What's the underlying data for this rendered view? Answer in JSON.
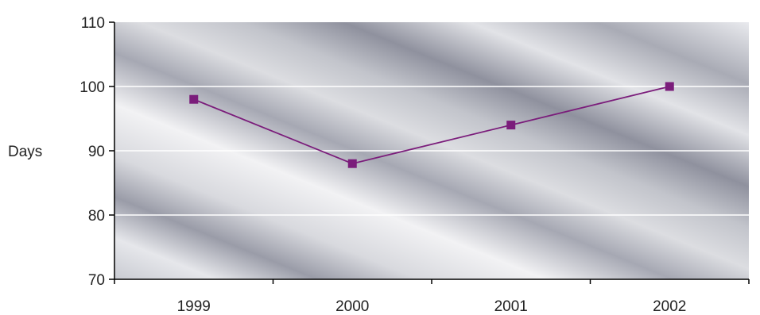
{
  "chart_data": {
    "type": "line",
    "categories": [
      "1999",
      "2000",
      "2001",
      "2002"
    ],
    "series": [
      {
        "values": [
          98,
          88,
          94,
          100
        ],
        "color": "#7b1d7b",
        "marker": "square"
      }
    ],
    "title": "",
    "xlabel": "",
    "ylabel": "Days",
    "ylim": [
      70,
      110
    ],
    "yticks": [
      70,
      80,
      90,
      100,
      110
    ],
    "grid": true,
    "gridlines": [
      80,
      90,
      100
    ],
    "legend": "none",
    "plot_background": "metallic-gradient"
  }
}
